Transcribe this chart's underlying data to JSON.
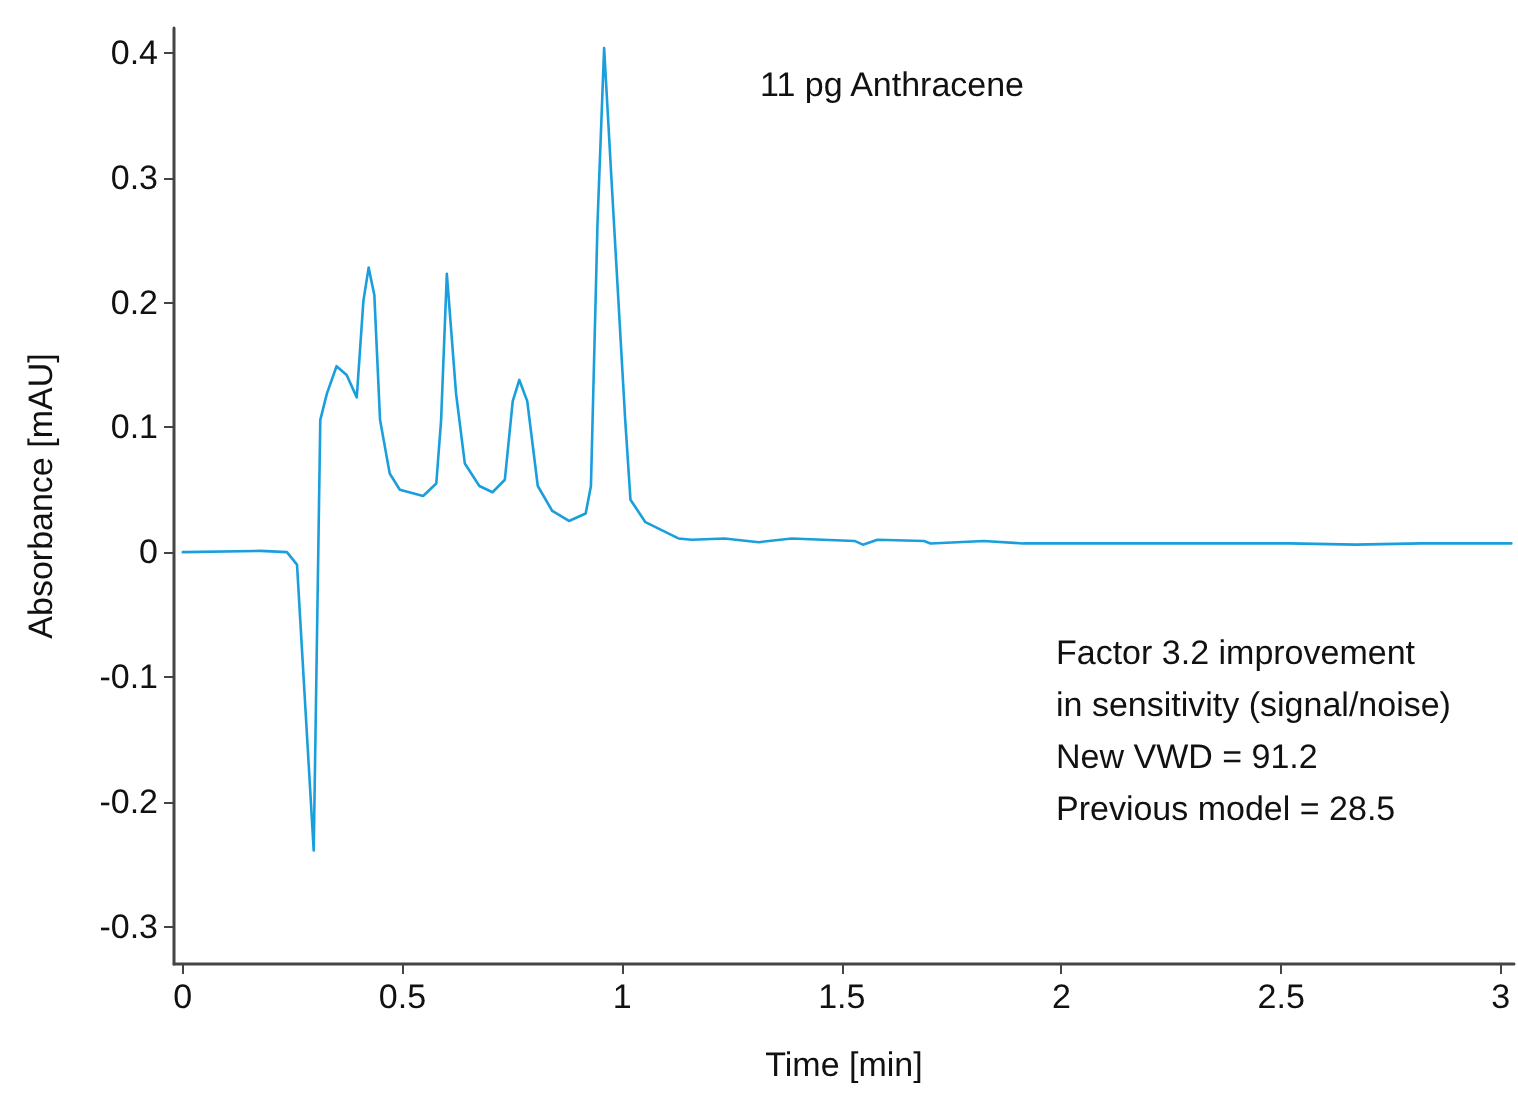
{
  "chart_data": {
    "type": "line",
    "xlabel": "Time [min]",
    "ylabel": "Absorbance [mAU]",
    "annotations": [
      "11 pg Anthracene",
      "Factor 3.2 improvement",
      "in sensitivity (signal/noise)",
      "New VWD = 91.2",
      "Previous model = 28.5"
    ],
    "xlim": [
      -0.02,
      3.03
    ],
    "ylim": [
      -0.33,
      0.42
    ],
    "xticks": [
      0,
      0.5,
      1,
      1.5,
      2,
      2.5,
      3
    ],
    "yticks": [
      -0.3,
      -0.2,
      -0.1,
      0,
      0.1,
      0.2,
      0.3,
      0.4
    ],
    "grid": false,
    "marker": "none",
    "line_style": "solid",
    "series": [
      {
        "color": "#1a9fdc",
        "x": [
          0,
          0.177,
          0.237,
          0.26,
          0.298,
          0.313,
          0.328,
          0.35,
          0.373,
          0.396,
          0.411,
          0.423,
          0.436,
          0.449,
          0.471,
          0.494,
          0.547,
          0.577,
          0.588,
          0.601,
          0.622,
          0.642,
          0.675,
          0.705,
          0.733,
          0.751,
          0.766,
          0.784,
          0.808,
          0.841,
          0.879,
          0.917,
          0.929,
          0.944,
          0.959,
          0.977,
          1.007,
          1.019,
          1.053,
          1.128,
          1.159,
          1.233,
          1.311,
          1.386,
          1.529,
          1.548,
          1.581,
          1.687,
          1.702,
          1.823,
          1.913,
          2.065,
          2.216,
          2.367,
          2.518,
          2.669,
          2.82,
          2.956,
          3.024
        ],
        "values": [
          0,
          0.001,
          0,
          -0.01,
          -0.239,
          0.106,
          0.127,
          0.149,
          0.142,
          0.124,
          0.201,
          0.228,
          0.206,
          0.106,
          0.063,
          0.05,
          0.045,
          0.055,
          0.106,
          0.223,
          0.127,
          0.071,
          0.053,
          0.048,
          0.058,
          0.121,
          0.138,
          0.121,
          0.053,
          0.033,
          0.025,
          0.031,
          0.053,
          0.264,
          0.404,
          0.291,
          0.106,
          0.042,
          0.024,
          0.011,
          0.01,
          0.011,
          0.008,
          0.011,
          0.009,
          0.006,
          0.01,
          0.009,
          0.007,
          0.009,
          0.007,
          0.007,
          0.007,
          0.007,
          0.007,
          0.006,
          0.007,
          0.007,
          0.007
        ]
      }
    ]
  }
}
